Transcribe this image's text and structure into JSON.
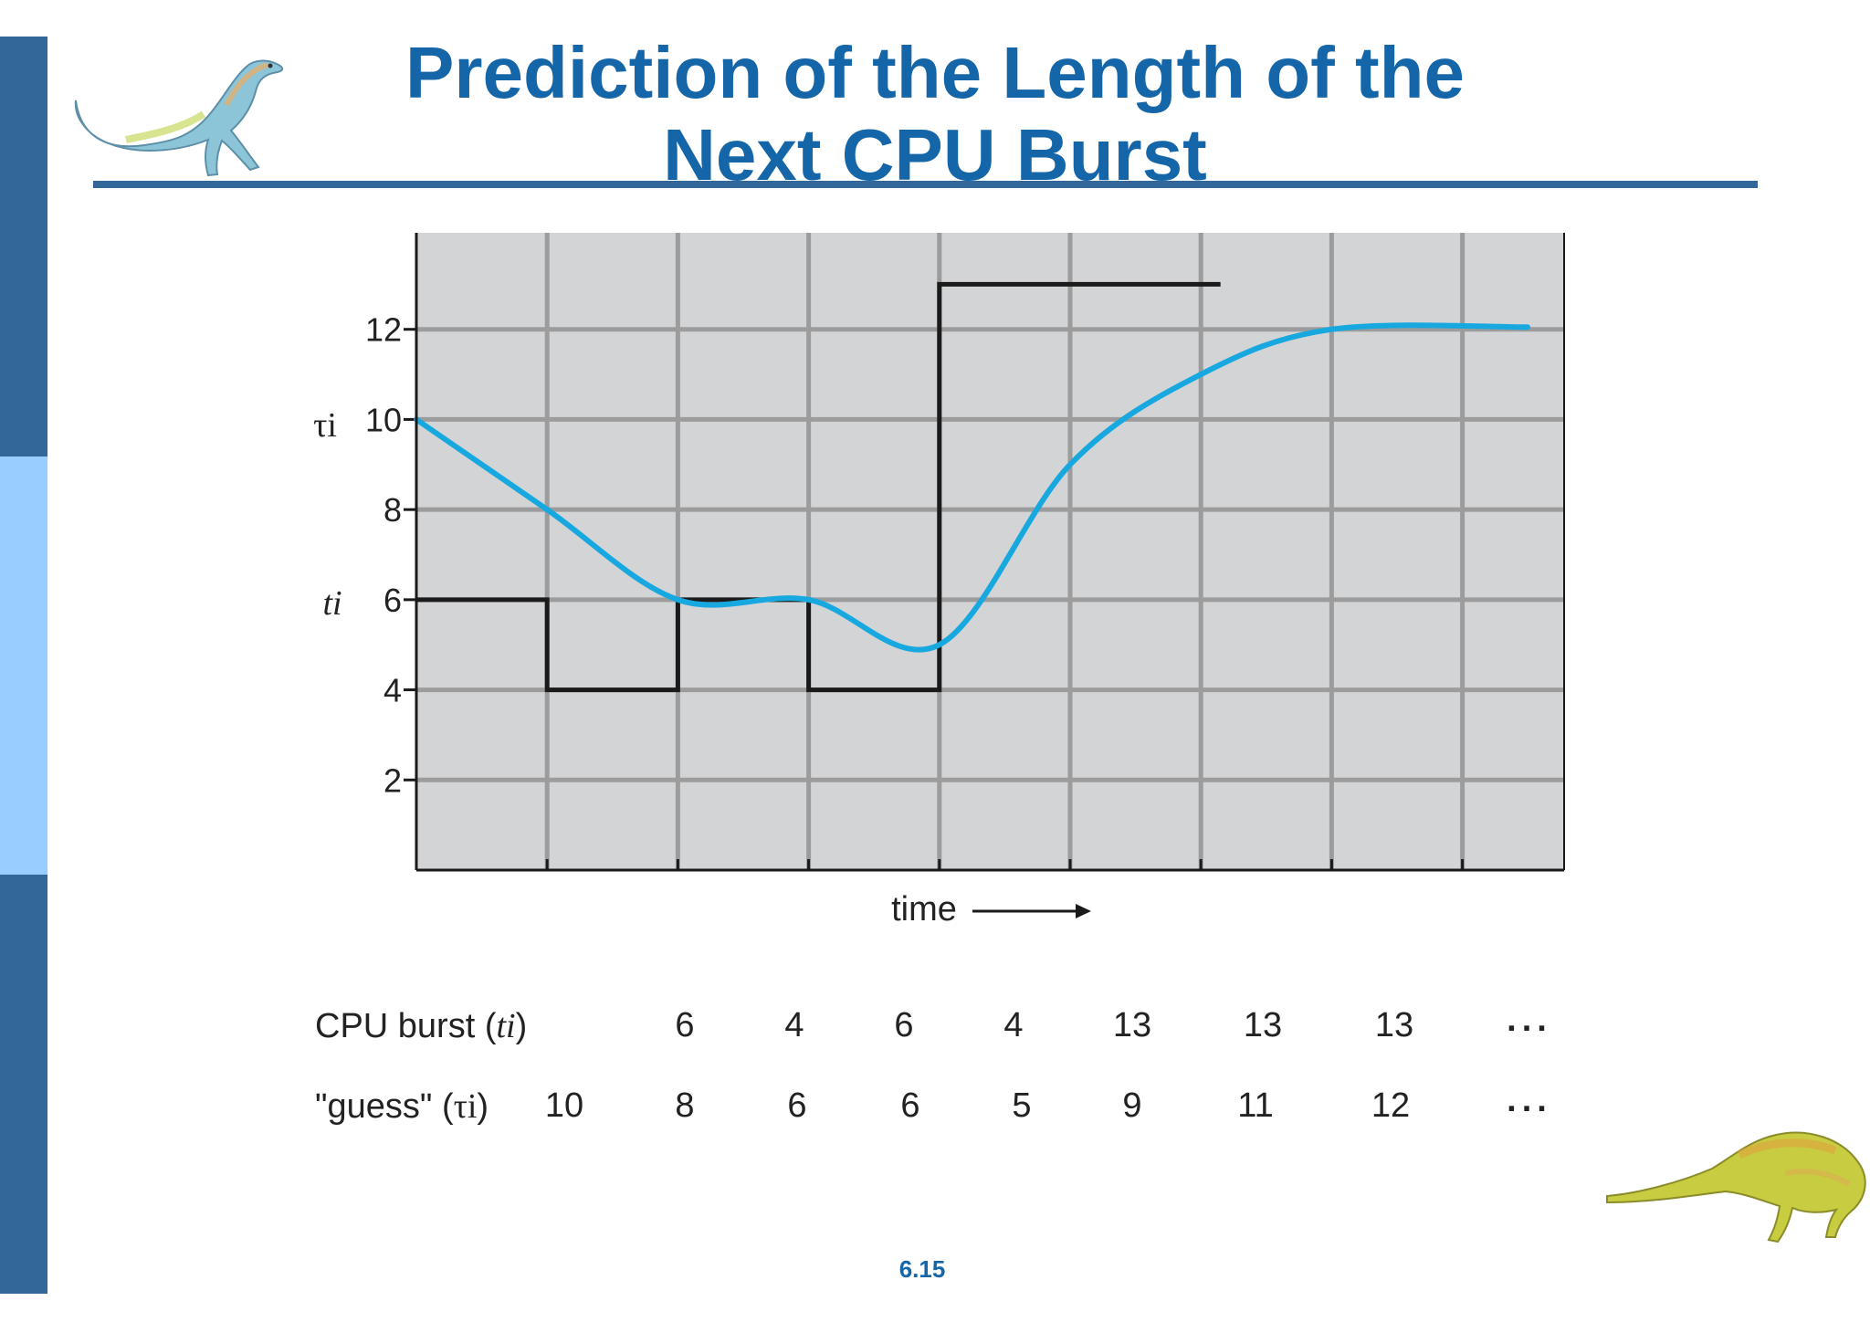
{
  "slide": {
    "title_line1": "Prediction of the Length of the",
    "title_line2": "Next CPU Burst",
    "page_number": "6.15",
    "colors": {
      "accent": "#1466a8",
      "sidebar_dark": "#336699",
      "sidebar_light": "#99ccff",
      "rule": "#336699"
    }
  },
  "chart_data": {
    "type": "line",
    "xlabel": "time",
    "ylabel_upper": "τi",
    "ylabel_lower": "ti",
    "ylim": [
      0,
      14
    ],
    "yticks": [
      2,
      4,
      6,
      8,
      10,
      12
    ],
    "grid": true,
    "series": [
      {
        "name": "CPU burst (ti)",
        "style": "step",
        "color": "#1a1a1a",
        "values": [
          6,
          4,
          6,
          4,
          13,
          13,
          13
        ]
      },
      {
        "name": "\"guess\" (τi)",
        "style": "smooth",
        "color": "#18a8e0",
        "values": [
          10,
          8,
          6,
          6,
          5,
          9,
          11,
          12
        ]
      }
    ]
  },
  "table": {
    "burst_label": "CPU burst (",
    "burst_label_var": "ti",
    "burst_label_end": ")",
    "guess_label": "\"guess\" (",
    "guess_label_var": "τi",
    "guess_label_end": ")",
    "burst_values": [
      "6",
      "4",
      "6",
      "4",
      "13",
      "13",
      "13"
    ],
    "guess_values": [
      "10",
      "8",
      "6",
      "6",
      "5",
      "9",
      "11",
      "12"
    ],
    "ellipsis": "..."
  }
}
